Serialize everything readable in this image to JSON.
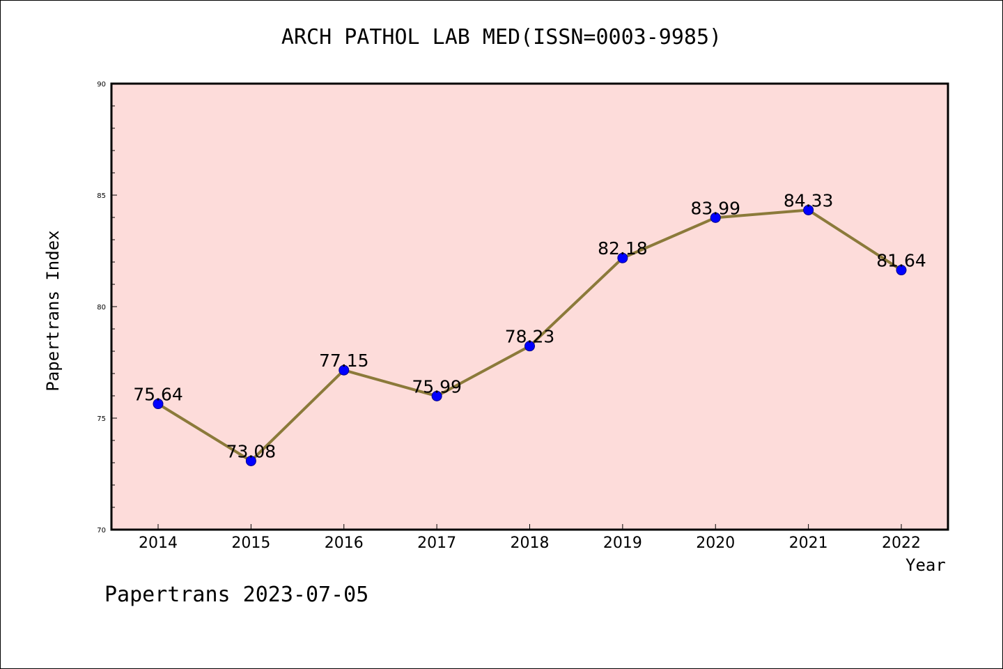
{
  "chart_data": {
    "type": "line",
    "title": "ARCH PATHOL LAB MED(ISSN=0003-9985)",
    "xlabel": "Year",
    "ylabel": "Papertrans Index",
    "x": [
      "2014",
      "2015",
      "2016",
      "2017",
      "2018",
      "2019",
      "2020",
      "2021",
      "2022"
    ],
    "series": [
      {
        "values": [
          75.64,
          73.08,
          77.15,
          75.99,
          78.23,
          82.18,
          83.99,
          84.33,
          81.64
        ]
      }
    ],
    "data_labels": [
      "75.64",
      "73.08",
      "77.15",
      "75.99",
      "78.23",
      "82.18",
      "83.99",
      "84.33",
      "81.64"
    ],
    "ylim": [
      70,
      90
    ],
    "yticks": [
      70,
      75,
      80,
      85,
      90
    ],
    "colors": {
      "plot_background": "#FDDCDA",
      "line": "#8B7A3A",
      "marker": "#0000FF"
    },
    "grid": false
  },
  "footer": "Papertrans 2023-07-05"
}
